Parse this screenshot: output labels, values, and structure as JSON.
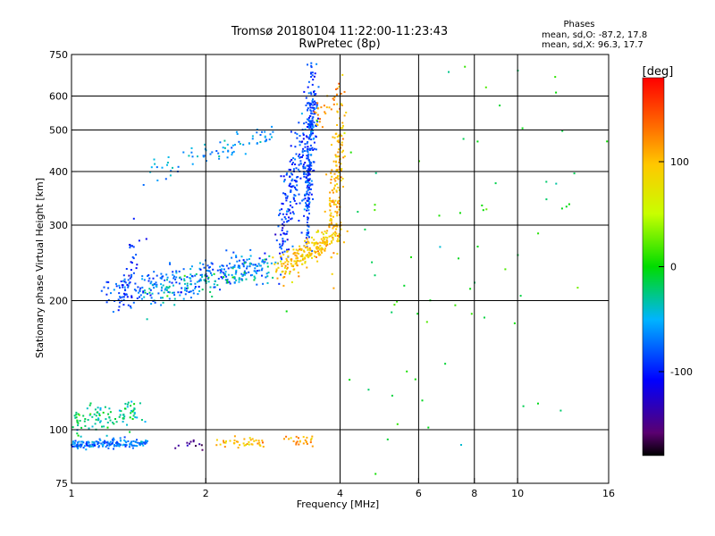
{
  "chart_data": {
    "type": "scatter",
    "title": "Tromsø 20180104 11:22:00-11:23:43",
    "subtitle": "RwPretec (8p)",
    "xlabel": "Frequency [MHz]",
    "ylabel": "Stationary phase Virtual Height [km]",
    "xscale": "log",
    "yscale": "log",
    "xlim": [
      1,
      16
    ],
    "ylim": [
      75,
      750
    ],
    "xticks": [
      1,
      2,
      4,
      6,
      8,
      10,
      16
    ],
    "yticks": [
      75,
      100,
      200,
      300,
      400,
      500,
      600,
      750
    ],
    "grid_x": [
      2,
      4,
      6,
      8,
      10
    ],
    "grid_y": [
      100,
      200,
      300,
      400,
      500,
      600
    ],
    "phases_box": {
      "heading": "Phases",
      "line_o": "mean, sd,O: -87.2, 17.8",
      "line_x": "mean, sd,X:  96.3, 17.7"
    },
    "colorbar": {
      "label": "[deg]",
      "range": [
        -180,
        180
      ],
      "ticks": [
        -100,
        0,
        100
      ],
      "colormap": "rainbow"
    },
    "groups": [
      {
        "x": [
          1.0,
          1.48
        ],
        "y": [
          92,
          93
        ],
        "phase": -70,
        "n": 170,
        "sx": 0.012,
        "sy": 0.012
      },
      {
        "x": [
          1.0,
          1.4
        ],
        "y": [
          103,
          110
        ],
        "phase": -25,
        "n": 110,
        "sx": 0.03,
        "sy": 0.035
      },
      {
        "x": [
          1.75,
          2.0
        ],
        "y": [
          93,
          93
        ],
        "phase": -150,
        "n": 12,
        "sx": 0.02,
        "sy": 0.02
      },
      {
        "x": [
          2.1,
          2.65
        ],
        "y": [
          93,
          93
        ],
        "phase": 100,
        "n": 40,
        "sx": 0.015,
        "sy": 0.012
      },
      {
        "x": [
          3.0,
          3.45
        ],
        "y": [
          94,
          94
        ],
        "phase": 110,
        "n": 25,
        "sx": 0.015,
        "sy": 0.015
      },
      {
        "x": [
          1.2,
          2.7
        ],
        "y": [
          203,
          245
        ],
        "phase": -80,
        "n": 260,
        "sx": 0.03,
        "sy": 0.045
      },
      {
        "x": [
          1.5,
          2.8
        ],
        "y": [
          210,
          240
        ],
        "phase": -35,
        "n": 120,
        "sx": 0.03,
        "sy": 0.04
      },
      {
        "x": [
          1.3,
          1.4
        ],
        "y": [
          200,
          275
        ],
        "phase": -95,
        "n": 40,
        "sx": 0.02,
        "sy": 0.05
      },
      {
        "x": [
          1.5,
          2.8
        ],
        "y": [
          400,
          495
        ],
        "phase": -60,
        "n": 80,
        "sx": 0.03,
        "sy": 0.03
      },
      {
        "x": [
          2.9,
          3.5
        ],
        "y": [
          270,
          580
        ],
        "phase": -90,
        "n": 230,
        "sx": 0.015,
        "sy": 0.1
      },
      {
        "x": [
          3.35,
          3.5
        ],
        "y": [
          300,
          640
        ],
        "phase": -85,
        "n": 220,
        "sx": 0.01,
        "sy": 0.12
      },
      {
        "x": [
          2.9,
          4.0
        ],
        "y": [
          235,
          290
        ],
        "phase": 95,
        "n": 220,
        "sx": 0.025,
        "sy": 0.03
      },
      {
        "x": [
          3.8,
          4.05
        ],
        "y": [
          280,
          520
        ],
        "phase": 105,
        "n": 150,
        "sx": 0.012,
        "sy": 0.15
      },
      {
        "x": [
          3.5,
          4.0
        ],
        "y": [
          530,
          610
        ],
        "phase": 120,
        "n": 30,
        "sx": 0.02,
        "sy": 0.04
      },
      {
        "x": [
          4.0,
          15.0
        ],
        "y": [
          100,
          600
        ],
        "phase": 0,
        "n": 90,
        "sx": 0.3,
        "sy": 0.5
      }
    ]
  }
}
